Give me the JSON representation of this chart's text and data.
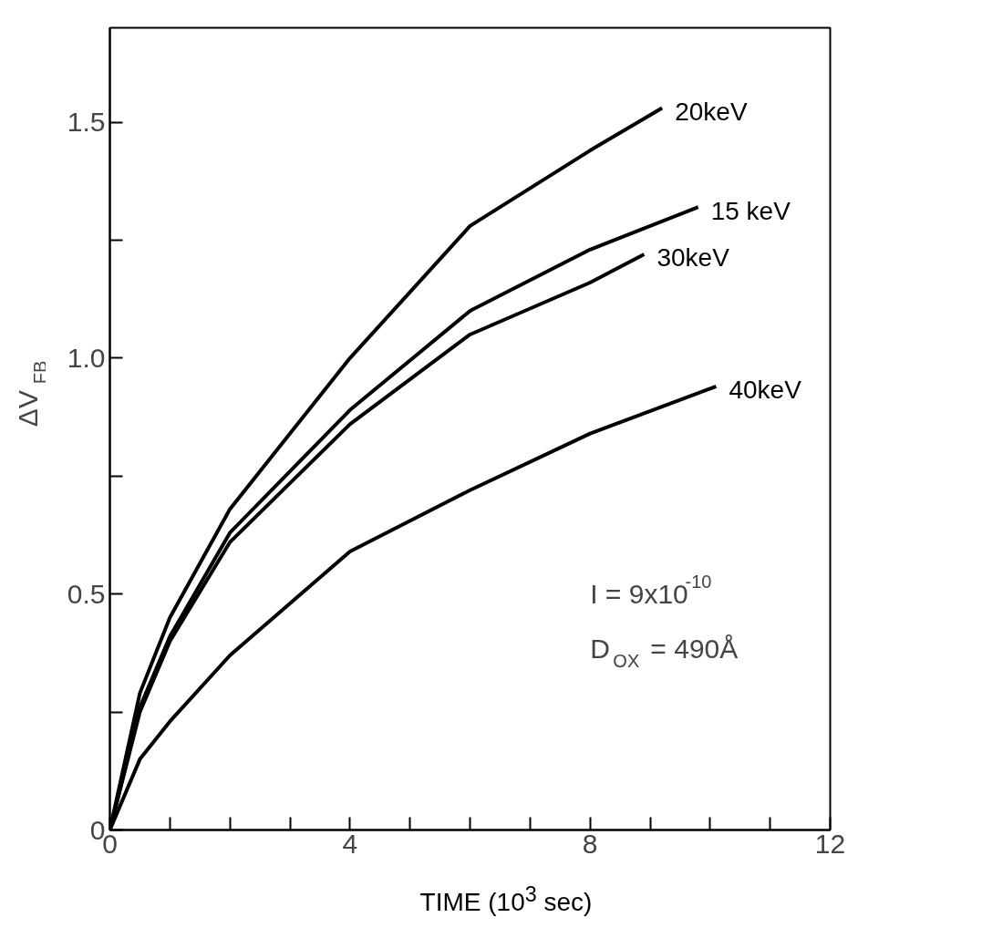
{
  "chart_data": {
    "type": "line",
    "xlabel": "TIME (10$^{3}$ sec)",
    "ylabel": "ΔV$_{FB}$",
    "xlim": [
      0,
      12
    ],
    "ylim": [
      0,
      1.7
    ],
    "xticks": [
      0,
      {
        "value": 1,
        "label": null
      },
      {
        "value": 2,
        "label": null
      },
      {
        "value": 3,
        "label": null
      },
      4,
      {
        "value": 5,
        "label": null
      },
      {
        "value": 6,
        "label": null
      },
      {
        "value": 7,
        "label": null
      },
      8,
      {
        "value": 9,
        "label": null
      },
      {
        "value": 10,
        "label": null
      },
      {
        "value": 11,
        "label": null
      },
      12
    ],
    "yticks": [
      0,
      {
        "value": 0.25,
        "label": null
      },
      0.5,
      {
        "value": 0.75,
        "label": null
      },
      {
        "value": 1,
        "label": "1.0"
      },
      {
        "value": 1.25,
        "label": null
      },
      1.5
    ],
    "grid": false,
    "marker": "none",
    "line_style": "solid",
    "annotations": [
      "I = 9x10$^{-10}$",
      "D$_{OX}$ = 490Å"
    ],
    "series": [
      {
        "name": "20keV",
        "color": "#000000",
        "x": [
          0,
          0.5,
          1,
          2,
          4,
          6,
          8,
          9.2
        ],
        "values": [
          0,
          0.29,
          0.45,
          0.68,
          1.0,
          1.28,
          1.44,
          1.53
        ]
      },
      {
        "name": "15 keV",
        "color": "#000000",
        "x": [
          0,
          0.5,
          1,
          2,
          4,
          6,
          8,
          9.8
        ],
        "values": [
          0,
          0.26,
          0.41,
          0.63,
          0.89,
          1.1,
          1.23,
          1.32
        ]
      },
      {
        "name": "30keV",
        "color": "#000000",
        "x": [
          0,
          0.5,
          1,
          2,
          4,
          6,
          8,
          8.9
        ],
        "values": [
          0,
          0.25,
          0.4,
          0.61,
          0.86,
          1.05,
          1.16,
          1.22
        ]
      },
      {
        "name": "40keV",
        "color": "#000000",
        "x": [
          0,
          0.5,
          1,
          2,
          4,
          6,
          8,
          10.1
        ],
        "values": [
          0,
          0.15,
          0.23,
          0.37,
          0.59,
          0.72,
          0.84,
          0.94
        ]
      }
    ]
  }
}
